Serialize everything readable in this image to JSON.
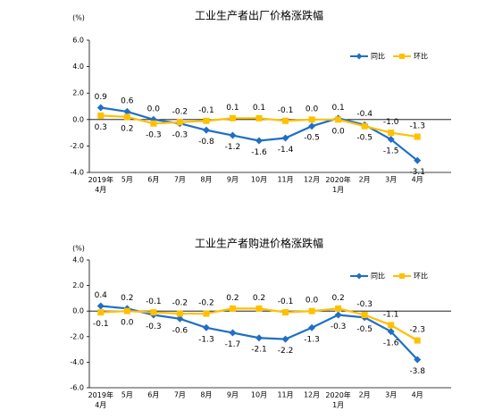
{
  "chart_data": [
    {
      "type": "line",
      "title": "工业生产者出厂价格涨跌幅",
      "unit": "(%)",
      "categories": [
        "2019年\n4月",
        "5月",
        "6月",
        "7月",
        "8月",
        "9月",
        "10月",
        "11月",
        "12月",
        "2020年\n1月",
        "2月",
        "3月",
        "4月"
      ],
      "series": [
        {
          "name": "同比",
          "color": "#1f6fc5",
          "marker": "diamond",
          "values": [
            0.9,
            0.6,
            0.0,
            -0.3,
            -0.8,
            -1.2,
            -1.6,
            -1.4,
            -0.5,
            0.1,
            -0.4,
            -1.5,
            -3.1
          ],
          "value_labels": [
            "0.9",
            "0.6",
            "0.0",
            "-0.3",
            "-0.8",
            "-1.2",
            "-1.6",
            "-1.4",
            "-0.5",
            "0.1",
            "-0.4",
            "-1.5",
            "-3.1"
          ]
        },
        {
          "name": "环比",
          "color": "#ffc000",
          "marker": "square",
          "values": [
            0.3,
            0.2,
            -0.3,
            -0.2,
            -0.1,
            0.1,
            0.1,
            -0.1,
            0.0,
            0.0,
            -0.5,
            -1.0,
            -1.3
          ],
          "value_labels": [
            "0.3",
            "0.2",
            "-0.3",
            "-0.2",
            "-0.1",
            "0.1",
            "0.1",
            "-0.1",
            "0.0",
            "0.0",
            "-0.5",
            "-1.0",
            "-1.3"
          ]
        }
      ],
      "ylim": [
        -4,
        6
      ],
      "yticks": [
        {
          "value": 6,
          "label": "6.0"
        },
        {
          "value": 4,
          "label": "4.0"
        },
        {
          "value": 2,
          "label": "2.0"
        },
        {
          "value": 0,
          "label": "0.0"
        },
        {
          "value": -2,
          "label": "-2.0"
        },
        {
          "value": -4,
          "label": "-4.0"
        }
      ],
      "legend": "upper right"
    },
    {
      "type": "line",
      "title": "工业生产者购进价格涨跌幅",
      "unit": "(%)",
      "categories": [
        "2019年\n4月",
        "5月",
        "6月",
        "7月",
        "8月",
        "9月",
        "10月",
        "11月",
        "12月",
        "2020年\n1月",
        "2月",
        "3月",
        "4月"
      ],
      "series": [
        {
          "name": "同比",
          "color": "#1f6fc5",
          "marker": "diamond",
          "values": [
            0.4,
            0.2,
            -0.3,
            -0.6,
            -1.3,
            -1.7,
            -2.1,
            -2.2,
            -1.3,
            -0.3,
            -0.5,
            -1.6,
            -3.8
          ],
          "value_labels": [
            "0.4",
            "0.2",
            "-0.3",
            "-0.6",
            "-1.3",
            "-1.7",
            "-2.1",
            "-2.2",
            "-1.3",
            "-0.3",
            "-0.5",
            "-1.6",
            "-3.8"
          ]
        },
        {
          "name": "环比",
          "color": "#ffc000",
          "marker": "square",
          "values": [
            -0.1,
            0.0,
            -0.1,
            -0.2,
            -0.2,
            0.2,
            0.2,
            -0.1,
            0.0,
            0.2,
            -0.3,
            -1.1,
            -2.3
          ],
          "value_labels": [
            "-0.1",
            "0.0",
            "-0.1",
            "-0.2",
            "-0.2",
            "0.2",
            "0.2",
            "-0.1",
            "0.0",
            "0.2",
            "-0.3",
            "-1.1",
            "-2.3"
          ]
        }
      ],
      "ylim": [
        -6,
        4
      ],
      "yticks": [
        {
          "value": 4,
          "label": "4.0"
        },
        {
          "value": 2,
          "label": "2.0"
        },
        {
          "value": 0,
          "label": "0.0"
        },
        {
          "value": -2,
          "label": "-2.0"
        },
        {
          "value": -4,
          "label": "-4.0"
        },
        {
          "value": -6,
          "label": "-6.0"
        }
      ],
      "legend": "upper right"
    }
  ]
}
